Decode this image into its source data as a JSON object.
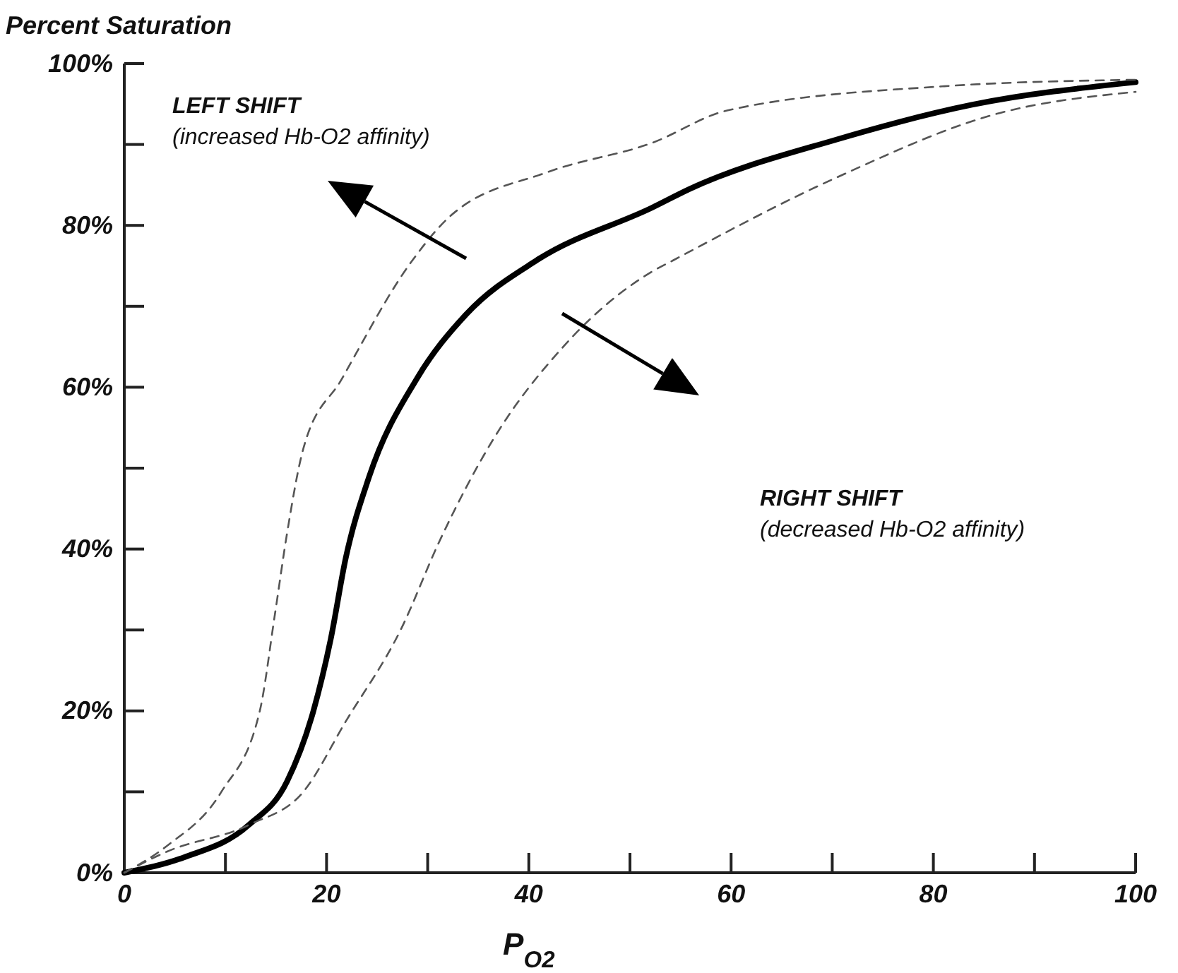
{
  "chart_data": {
    "type": "line",
    "ylabel": "Percent Saturation",
    "xlabel": "P$_{O2}$",
    "xlim": [
      0,
      100
    ],
    "ylim": [
      0,
      100
    ],
    "xticks": [
      0,
      {
        "value": 10,
        "label": null
      },
      20,
      {
        "value": 30,
        "label": null
      },
      40,
      {
        "value": 50,
        "label": null
      },
      60,
      {
        "value": 70,
        "label": null
      },
      80,
      {
        "value": 90,
        "label": null
      },
      100
    ],
    "yticks": [
      {
        "value": 0,
        "label": "0%"
      },
      {
        "value": 10,
        "label": null
      },
      {
        "value": 20,
        "label": "20%"
      },
      {
        "value": 30,
        "label": null
      },
      {
        "value": 40,
        "label": "40%"
      },
      {
        "value": 50,
        "label": null
      },
      {
        "value": 60,
        "label": "60%"
      },
      {
        "value": 70,
        "label": null
      },
      {
        "value": 80,
        "label": "80%"
      },
      {
        "value": 90,
        "label": null
      },
      {
        "value": 100,
        "label": "100%"
      }
    ],
    "grid": false,
    "marker": "none",
    "annotations": [
      "LEFT SHIFT\n(increased Hb-O2 affinity)",
      "RIGHT SHIFT\n(decreased Hb-O2 affinity)"
    ],
    "series": [
      {
        "color": "#000000",
        "line_style": "solid",
        "x": [
          0,
          5.9,
          12.3,
          16.1,
          18.7,
          20.4,
          21.9,
          24.2,
          28.9,
          33.8,
          40.8,
          52.2,
          55.9,
          70.4,
          83.8,
          100
        ],
        "values": [
          0,
          1.9,
          5.9,
          11.3,
          20,
          28.8,
          38.9,
          48.9,
          61,
          69,
          75.7,
          82.2,
          84.5,
          90.6,
          94.9,
          97.7
        ]
      },
      {
        "color": "#555555",
        "line_style": "dashed",
        "x": [
          0,
          4.2,
          9.6,
          13.4,
          14.9,
          16.1,
          17.7,
          21.5,
          28.5,
          32.1,
          41.9,
          52.2,
          59.6,
          81.1,
          100
        ],
        "values": [
          0,
          3.3,
          10,
          20,
          32,
          42,
          52.4,
          61,
          75.7,
          81,
          86.6,
          90.2,
          94.2,
          97.2,
          98
        ]
      },
      {
        "color": "#555555",
        "line_style": "dashed",
        "x": [
          0,
          4.2,
          12.3,
          17.7,
          21.9,
          27.4,
          31.1,
          36.5,
          43.4,
          52.2,
          54.3,
          70.4,
          86.6,
          100
        ],
        "values": [
          0,
          2.6,
          5.9,
          10,
          18.7,
          30.2,
          40.8,
          53.6,
          65,
          74.3,
          75.7,
          85.9,
          93.9,
          96.5
        ]
      }
    ]
  }
}
